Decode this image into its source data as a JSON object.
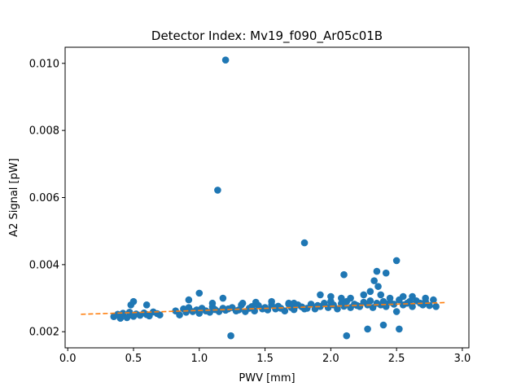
{
  "chart_data": {
    "type": "scatter",
    "title": "Detector Index: Mv19_f090_Ar05c01B",
    "xlabel": "PWV [mm]",
    "ylabel": "A2 Signal [pW]",
    "xlim": [
      -0.02,
      3.05
    ],
    "ylim": [
      0.00152,
      0.01048
    ],
    "xticks": [
      0.0,
      0.5,
      1.0,
      1.5,
      2.0,
      2.5,
      3.0
    ],
    "xtick_labels": [
      "0.0",
      "0.5",
      "1.0",
      "1.5",
      "2.0",
      "2.5",
      "3.0"
    ],
    "yticks": [
      0.002,
      0.004,
      0.006,
      0.008,
      0.01
    ],
    "ytick_labels": [
      "0.002",
      "0.004",
      "0.006",
      "0.008",
      "0.010"
    ],
    "grid": false,
    "colors": {
      "points": "#1f77b4",
      "fit": "#ff7f0e",
      "axes": "#000000",
      "background": "#ffffff"
    },
    "series": [
      {
        "name": "data",
        "kind": "points",
        "x": [
          0.35,
          0.38,
          0.4,
          0.42,
          0.45,
          0.47,
          0.48,
          0.5,
          0.52,
          0.55,
          0.58,
          0.6,
          0.62,
          0.65,
          0.68,
          0.7,
          0.48,
          0.5,
          0.6,
          0.82,
          0.85,
          0.88,
          0.9,
          0.92,
          0.95,
          0.98,
          1.0,
          1.02,
          1.05,
          1.08,
          1.1,
          1.12,
          1.15,
          1.18,
          1.2,
          1.22,
          1.25,
          1.28,
          0.92,
          1.0,
          1.1,
          1.18,
          1.3,
          1.32,
          1.35,
          1.38,
          1.4,
          1.42,
          1.45,
          1.48,
          1.5,
          1.52,
          1.55,
          1.58,
          1.6,
          1.62,
          1.65,
          1.68,
          1.7,
          1.72,
          1.75,
          1.78,
          1.8,
          1.33,
          1.43,
          1.55,
          1.68,
          1.72,
          1.82,
          1.85,
          1.88,
          1.9,
          1.92,
          1.95,
          1.98,
          2.0,
          2.02,
          2.05,
          2.08,
          2.1,
          2.12,
          2.15,
          2.18,
          2.2,
          1.92,
          2.0,
          2.08,
          2.15,
          2.22,
          2.25,
          2.28,
          2.3,
          2.32,
          2.35,
          2.38,
          2.4,
          2.42,
          2.45,
          2.48,
          2.5,
          2.52,
          2.55,
          2.58,
          2.6,
          2.62,
          2.65,
          2.68,
          2.7,
          2.72,
          2.75,
          2.78,
          2.8,
          2.25,
          2.3,
          2.38,
          2.45,
          2.55,
          2.62,
          2.72,
          1.2,
          1.14,
          1.8,
          2.1,
          2.35,
          2.42,
          2.5,
          2.33,
          2.36,
          2.4,
          1.24,
          2.12,
          2.28,
          2.52,
          0.4
        ],
        "y": [
          0.00245,
          0.00252,
          0.00248,
          0.00255,
          0.00242,
          0.00258,
          0.0025,
          0.00246,
          0.00253,
          0.00249,
          0.00256,
          0.00251,
          0.00247,
          0.00259,
          0.00254,
          0.0025,
          0.0028,
          0.0029,
          0.0028,
          0.00262,
          0.0025,
          0.00268,
          0.00258,
          0.00272,
          0.0026,
          0.00265,
          0.00255,
          0.0027,
          0.00262,
          0.00258,
          0.00274,
          0.00266,
          0.0026,
          0.0027,
          0.00264,
          0.00268,
          0.00272,
          0.00262,
          0.00295,
          0.00315,
          0.00285,
          0.003,
          0.00265,
          0.0028,
          0.0026,
          0.0027,
          0.00275,
          0.00262,
          0.00278,
          0.00268,
          0.00272,
          0.00265,
          0.0028,
          0.00268,
          0.00276,
          0.0027,
          0.00262,
          0.00282,
          0.00272,
          0.00266,
          0.0028,
          0.00274,
          0.00268,
          0.00285,
          0.00288,
          0.0029,
          0.00285,
          0.00285,
          0.0027,
          0.00282,
          0.00268,
          0.00278,
          0.00275,
          0.00285,
          0.00272,
          0.0029,
          0.0028,
          0.00268,
          0.00284,
          0.00276,
          0.0029,
          0.00272,
          0.00282,
          0.00278,
          0.0031,
          0.00305,
          0.003,
          0.003,
          0.00275,
          0.00288,
          0.0028,
          0.00292,
          0.00272,
          0.00285,
          0.0028,
          0.0029,
          0.00275,
          0.00288,
          0.00282,
          0.0026,
          0.00295,
          0.0028,
          0.00285,
          0.0029,
          0.00275,
          0.00292,
          0.00285,
          0.0028,
          0.0029,
          0.00278,
          0.00295,
          0.00275,
          0.0031,
          0.0032,
          0.0031,
          0.003,
          0.00305,
          0.00305,
          0.003,
          0.0101,
          0.00622,
          0.00465,
          0.0037,
          0.0038,
          0.00375,
          0.00412,
          0.00352,
          0.00335,
          0.0022,
          0.00188,
          0.00188,
          0.00208,
          0.00208,
          0.0024
        ]
      },
      {
        "name": "fit",
        "kind": "dashed-line",
        "x": [
          0.1,
          2.88
        ],
        "y": [
          0.00252,
          0.00287
        ]
      }
    ]
  }
}
